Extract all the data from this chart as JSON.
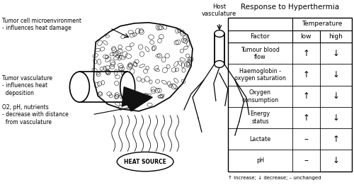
{
  "title": "Response to Hyperthermia",
  "table_header_main": "Temperature",
  "table_col0": "Factor",
  "table_col1": "low",
  "table_col2": "high",
  "rows": [
    {
      "factor": "Tumour blood\nflow",
      "low": "↑",
      "high": "↓"
    },
    {
      "factor": "Haemoglobin -\noxygen saturation",
      "low": "↑",
      "high": "↓"
    },
    {
      "factor": "Oxygen\nconsumption",
      "low": "↑",
      "high": "↓"
    },
    {
      "factor": "Energy\nstatus",
      "low": "↑",
      "high": "↓"
    },
    {
      "factor": "Lactate",
      "low": "–",
      "high": "↑"
    },
    {
      "factor": "pH",
      "low": "–",
      "high": "↓"
    }
  ],
  "footnote": "↑ increase; ↓ decrease; – unchanged",
  "label_microenv": "Tumor cell microenvironment\n- influences heat damage",
  "label_vasculature": "Tumor vasculature\n- influences heat\n  deposition",
  "label_o2": "O2, pH, nutrients\n- decrease with distance\n  from vasculature",
  "host_label": "Host\nvasculature",
  "heat_label": "HEAT SOURCE",
  "bg_color": "#ffffff"
}
